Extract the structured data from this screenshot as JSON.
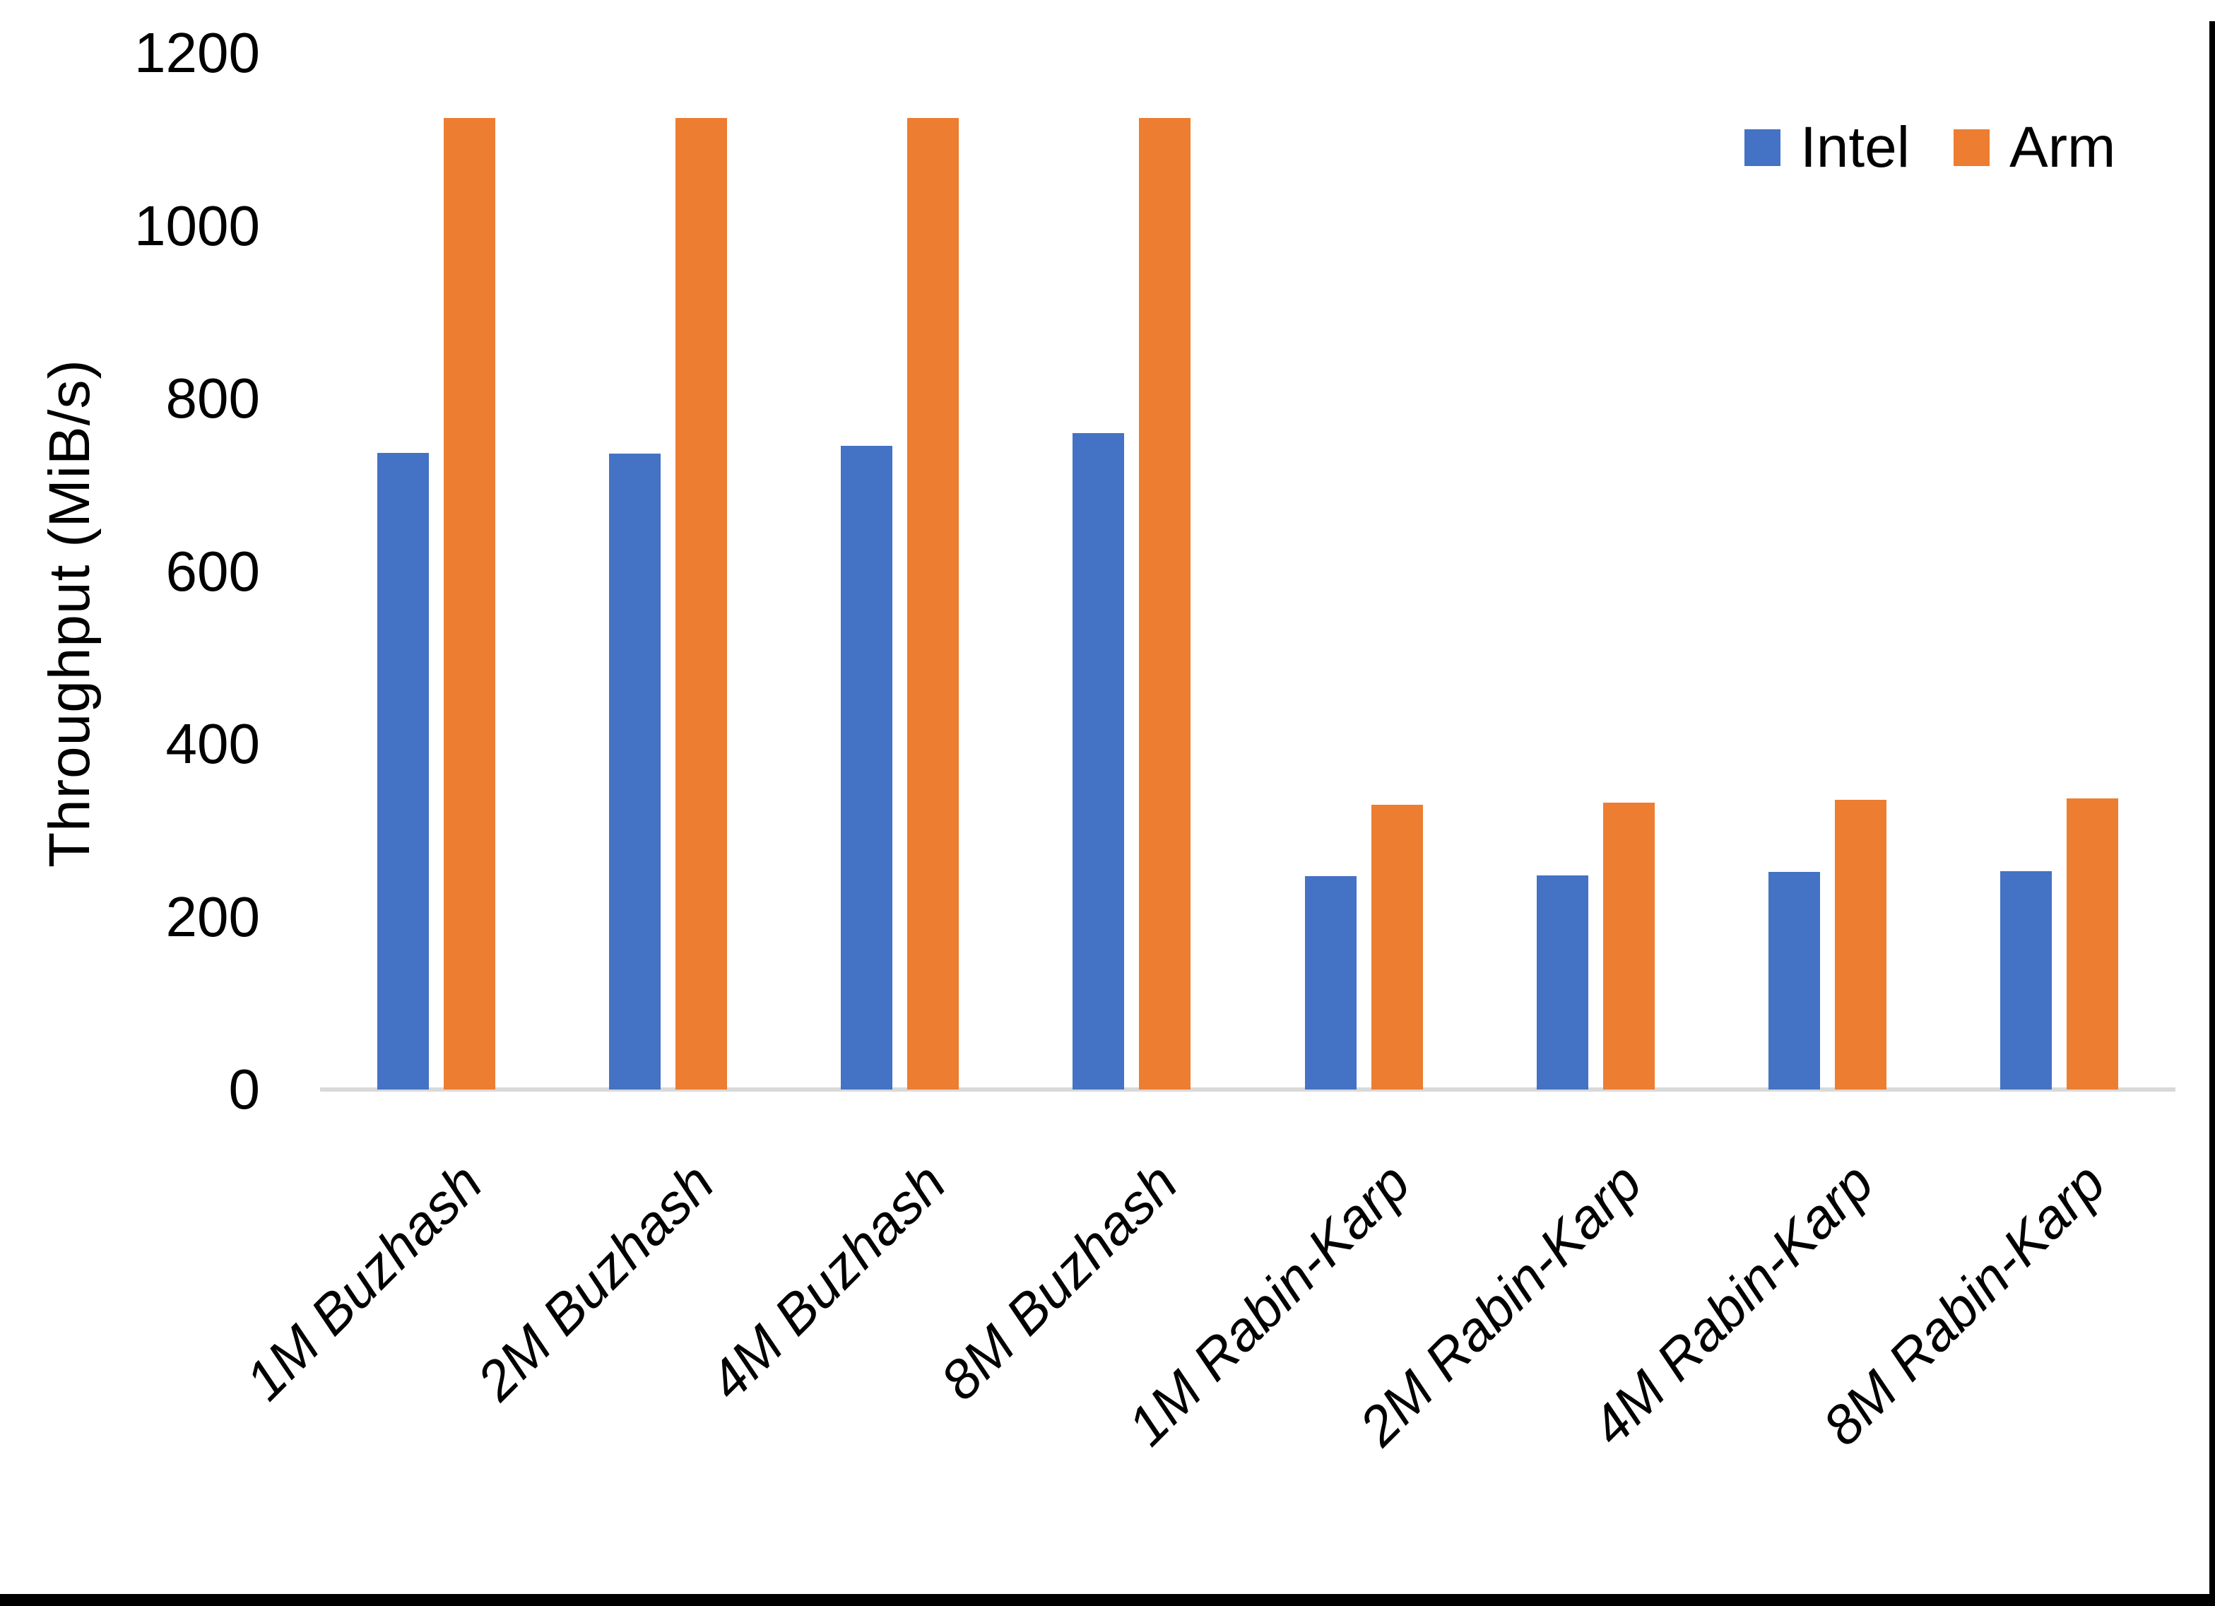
{
  "chart_data": {
    "type": "bar",
    "title": "",
    "xlabel": "",
    "ylabel": "Throughput (MiB/s)",
    "ylim": [
      0,
      1200
    ],
    "yticks": [
      0,
      200,
      400,
      600,
      800,
      1000,
      1200
    ],
    "grid": false,
    "legend_position": "top-right",
    "categories": [
      "1M Buzhash",
      "2M Buzhash",
      "4M Buzhash",
      "8M Buzhash",
      "1M Rabin-Karp",
      "2M Rabin-Karp",
      "4M Rabin-Karp",
      "8M Rabin-Karp"
    ],
    "series": [
      {
        "name": "Intel",
        "color": "#4472C4",
        "values": [
          737,
          736,
          745,
          760,
          247,
          248,
          252,
          253
        ]
      },
      {
        "name": "Arm",
        "color": "#ED7D31",
        "values": [
          1125,
          1125,
          1125,
          1125,
          330,
          332,
          335,
          337
        ]
      }
    ],
    "axis_line_color": "#D9D9D9",
    "text_color": "#000000"
  },
  "frame": {
    "edge_color": "#000000"
  }
}
